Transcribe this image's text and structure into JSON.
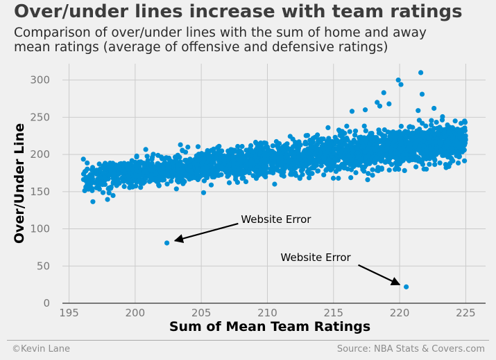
{
  "chart_data": {
    "type": "scatter",
    "title": "Over/under lines increase with team ratings",
    "subtitle_lines": [
      "Comparison of over/under lines with the sum of home and away",
      "mean ratings (average of offensive and defensive ratings)"
    ],
    "xlabel": "Sum of Mean Team Ratings",
    "ylabel": "Over/Under Line",
    "xlim": [
      194.5,
      226.5
    ],
    "ylim": [
      0,
      322
    ],
    "xticks": [
      195,
      200,
      205,
      210,
      215,
      220,
      225
    ],
    "yticks": [
      0,
      50,
      100,
      150,
      200,
      250,
      300
    ],
    "grid": true,
    "point_color": "#008fd5",
    "trend": {
      "x_range": [
        196,
        225
      ],
      "y_at_xmin": 168,
      "y_at_xmax": 218,
      "spread": 11
    },
    "outliers": [
      {
        "x": 202.4,
        "y": 81
      },
      {
        "x": 220.5,
        "y": 22
      },
      {
        "x": 221.6,
        "y": 310
      },
      {
        "x": 219.9,
        "y": 300
      },
      {
        "x": 220.1,
        "y": 294
      },
      {
        "x": 218.8,
        "y": 283
      },
      {
        "x": 221.7,
        "y": 281
      },
      {
        "x": 218.3,
        "y": 270
      },
      {
        "x": 218.5,
        "y": 265
      },
      {
        "x": 219.2,
        "y": 268
      },
      {
        "x": 216.4,
        "y": 258
      },
      {
        "x": 217.4,
        "y": 260
      },
      {
        "x": 221.4,
        "y": 259
      },
      {
        "x": 222.6,
        "y": 262
      },
      {
        "x": 216.0,
        "y": 238
      },
      {
        "x": 224.0,
        "y": 236
      },
      {
        "x": 224.2,
        "y": 245
      },
      {
        "x": 219.2,
        "y": 190
      }
    ],
    "annotations": [
      {
        "text": "Website Error",
        "text_x": 208.0,
        "text_y": 108,
        "arrow_x": 203.0,
        "arrow_y": 84
      },
      {
        "text": "Website Error",
        "text_x": 211.0,
        "text_y": 57,
        "arrow_x": 220.0,
        "arrow_y": 25
      }
    ]
  },
  "footer": {
    "left": "©Kevin Lane",
    "right": "Source: NBA Stats & Covers.com"
  }
}
